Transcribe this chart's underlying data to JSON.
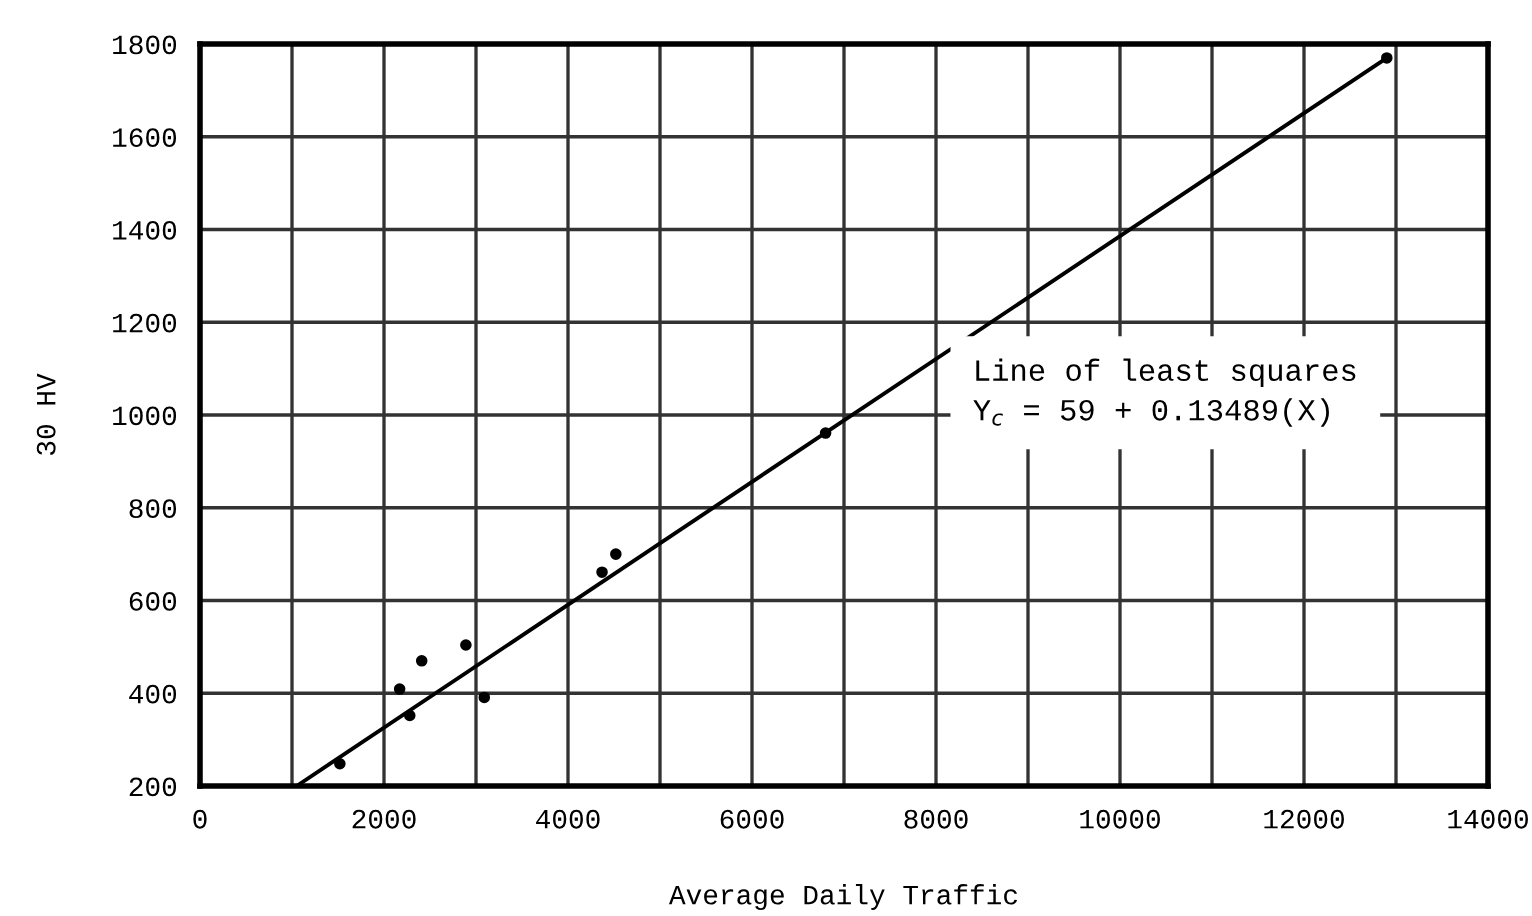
{
  "chart_data": {
    "type": "scatter",
    "xlabel": "Average Daily Traffic",
    "ylabel": "30 HV",
    "xlim": [
      0,
      14000
    ],
    "ylim": [
      200,
      1800
    ],
    "xticks": [
      0,
      {
        "value": 1000,
        "label": null
      },
      2000,
      {
        "value": 3000,
        "label": null
      },
      4000,
      {
        "value": 5000,
        "label": null
      },
      6000,
      {
        "value": 7000,
        "label": null
      },
      8000,
      {
        "value": 9000,
        "label": null
      },
      10000,
      {
        "value": 11000,
        "label": null
      },
      12000,
      {
        "value": 13000,
        "label": null
      },
      14000
    ],
    "yticks": [
      200,
      400,
      600,
      800,
      1000,
      1200,
      1400,
      1600,
      1800
    ],
    "grid": true,
    "marker": "circle",
    "annotations": [
      "Line of least squares",
      "Y$_{c}$ = 59 + 0.13489(X)"
    ],
    "series": [
      {
        "color": "#000000",
        "x": [
          1520,
          2170,
          2280,
          2410,
          2890,
          3090,
          4370,
          4520,
          6800,
          12900
        ],
        "values": [
          248,
          409,
          352,
          470,
          504,
          391,
          661,
          700,
          961,
          1770
        ]
      },
      {
        "type": "line",
        "color": "#000000",
        "x": [
          1050,
          12900
        ],
        "values": [
          200,
          1770
        ],
        "marker": "none",
        "line_style": "solid"
      }
    ]
  }
}
